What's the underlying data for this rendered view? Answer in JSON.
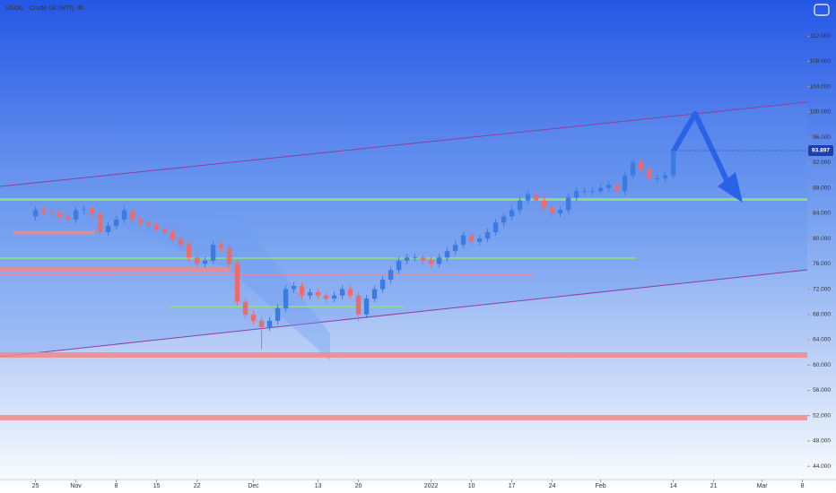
{
  "chart_data": {
    "type": "candlestick",
    "title": "USOIL · Crude Oil (WTI), 4h",
    "up_color": "#3d7be0",
    "down_color": "#ef6a6a",
    "x": [
      0,
      1,
      2,
      3,
      4,
      5,
      6,
      7,
      8,
      9,
      10,
      11,
      12,
      13,
      14,
      15,
      16,
      17,
      18,
      19,
      20,
      21,
      22,
      23,
      24,
      25,
      26,
      27,
      28,
      29,
      30,
      31,
      32,
      33,
      34,
      35,
      36,
      37,
      38,
      39,
      40,
      41,
      42,
      43,
      44,
      45,
      46,
      47,
      48,
      49,
      50,
      51,
      52,
      53,
      54,
      55,
      56,
      57,
      58,
      59,
      60,
      61,
      62,
      63,
      64,
      65,
      66,
      67,
      68,
      69,
      70,
      71,
      72,
      73,
      74,
      75,
      76,
      77,
      78,
      79
    ],
    "open": [
      83.5,
      84.5,
      84.2,
      84,
      83.5,
      83,
      84.5,
      84.6,
      84,
      81,
      82,
      83,
      84.5,
      83,
      82.5,
      82,
      81.5,
      81,
      80,
      79,
      77,
      76,
      76.5,
      79,
      78.5,
      76,
      70,
      68,
      67,
      66,
      67,
      69,
      72,
      72.5,
      71,
      71.5,
      71,
      70.5,
      71,
      72,
      71,
      68,
      70.5,
      72,
      73.5,
      75,
      76.5,
      77,
      77,
      76.5,
      76,
      77,
      78,
      79,
      80.5,
      79.5,
      80,
      81,
      82.5,
      83.5,
      84.5,
      86,
      87,
      86,
      85,
      84,
      84.5,
      86.5,
      87.5,
      87.5,
      87.5,
      88,
      88.5,
      87.5,
      90,
      92,
      91,
      89.5,
      89.5,
      90
    ],
    "high": [
      85.1,
      85.1,
      84.8,
      84.6,
      84.1,
      85.1,
      85.2,
      85.2,
      84.6,
      82.6,
      83.6,
      85.1,
      85.1,
      83.6,
      83.1,
      82.6,
      82.1,
      81.6,
      80.6,
      79.6,
      77.6,
      77.1,
      79.6,
      79.6,
      79.1,
      76.6,
      70.6,
      68.6,
      67.6,
      67.6,
      69.6,
      72.6,
      73.1,
      73.1,
      72.1,
      72.1,
      71.6,
      71.6,
      72.6,
      72.6,
      71.6,
      71.1,
      72.6,
      74.1,
      75.6,
      77.1,
      77.6,
      77.6,
      77.6,
      77.1,
      77.6,
      78.6,
      79.6,
      81.1,
      81.1,
      80.6,
      81.6,
      83.1,
      84.1,
      85.1,
      86.6,
      87.6,
      87.6,
      86.6,
      85.6,
      85.1,
      87.1,
      88.1,
      88.1,
      88.1,
      88.6,
      89.1,
      89.1,
      90.6,
      92.6,
      92.6,
      91.6,
      90.1,
      90.6,
      94.5
    ],
    "low": [
      82.9,
      83.6,
      83.4,
      82.9,
      82.4,
      82.4,
      83.9,
      83.4,
      80.4,
      80.4,
      81.4,
      82.4,
      82.4,
      81.9,
      81.4,
      80.9,
      80.4,
      79.4,
      78.4,
      76.4,
      75.4,
      75.4,
      75.9,
      77.9,
      75.4,
      69.4,
      67.4,
      66.4,
      62.5,
      65.4,
      66.4,
      68.4,
      71.4,
      70.4,
      70.4,
      70.4,
      69.9,
      69.9,
      70.4,
      70.4,
      67,
      67.4,
      69.9,
      71.4,
      72.9,
      74.4,
      75.9,
      76.4,
      75.9,
      75.4,
      75.4,
      76.4,
      77.4,
      78.4,
      78.9,
      78.9,
      79.4,
      80.4,
      81.9,
      82.9,
      83.9,
      85.4,
      85.4,
      84.4,
      83.4,
      83.4,
      83.9,
      85.9,
      86.9,
      86.9,
      86.9,
      87.4,
      86.9,
      86.9,
      89.4,
      90.4,
      88.9,
      88.9,
      88.9,
      89.4
    ],
    "close": [
      84.5,
      84.2,
      84,
      83.5,
      83,
      84.5,
      84.6,
      84,
      81,
      82,
      83,
      84.5,
      83,
      82.5,
      82,
      81.5,
      81,
      80,
      79,
      77,
      76,
      76.5,
      79,
      78.5,
      76,
      70,
      68,
      67,
      66,
      67,
      69,
      72,
      72.5,
      71,
      71.5,
      71,
      70.5,
      71,
      72,
      71,
      68,
      70.5,
      72,
      73.5,
      75,
      76.5,
      77,
      77,
      76.5,
      76,
      77,
      78,
      79,
      80.5,
      79.5,
      80,
      81,
      82.5,
      83.5,
      84.5,
      86,
      87,
      86,
      85,
      84,
      84.5,
      86.5,
      87.5,
      87.5,
      87.5,
      88,
      88.5,
      87.5,
      90,
      92,
      91,
      89.5,
      89.5,
      90,
      93.897
    ],
    "xlim": [
      -4.4,
      95.6
    ],
    "xticks": [
      {
        "value": 0,
        "label": "25"
      },
      {
        "value": 5,
        "label": "Nov"
      },
      {
        "value": 10,
        "label": "8"
      },
      {
        "value": 15,
        "label": "15"
      },
      {
        "value": 20,
        "label": "22"
      },
      {
        "value": 27,
        "label": "Dec"
      },
      {
        "value": 35,
        "label": "13"
      },
      {
        "value": 40,
        "label": "20"
      },
      {
        "value": 49,
        "label": "2022"
      },
      {
        "value": 54,
        "label": "10"
      },
      {
        "value": 59,
        "label": "17"
      },
      {
        "value": 64,
        "label": "24"
      },
      {
        "value": 70,
        "label": "Feb"
      },
      {
        "value": 79,
        "label": "14"
      },
      {
        "value": 84,
        "label": "21"
      },
      {
        "value": 90,
        "label": "Mar"
      },
      {
        "value": 95,
        "label": "8"
      }
    ],
    "ylim": [
      41.9,
      117.7
    ],
    "yticks": [
      {
        "value": 44,
        "label": "44.000"
      },
      {
        "value": 48,
        "label": "48.000"
      },
      {
        "value": 52,
        "label": "52.000"
      },
      {
        "value": 56,
        "label": "56.000"
      },
      {
        "value": 60,
        "label": "60.000"
      },
      {
        "value": 64,
        "label": "64.000"
      },
      {
        "value": 68,
        "label": "68.000"
      },
      {
        "value": 72,
        "label": "72.000"
      },
      {
        "value": 76,
        "label": "76.000"
      },
      {
        "value": 80,
        "label": "80.000"
      },
      {
        "value": 84,
        "label": "84.000"
      },
      {
        "value": 88,
        "label": "88.000"
      },
      {
        "value": 92,
        "label": "92.000"
      },
      {
        "value": 96,
        "label": "96.000"
      },
      {
        "value": 100,
        "label": "100.000"
      },
      {
        "value": 104,
        "label": "104.000"
      },
      {
        "value": 108,
        "label": "108.000"
      },
      {
        "value": 112,
        "label": "112.000"
      }
    ]
  }
}
